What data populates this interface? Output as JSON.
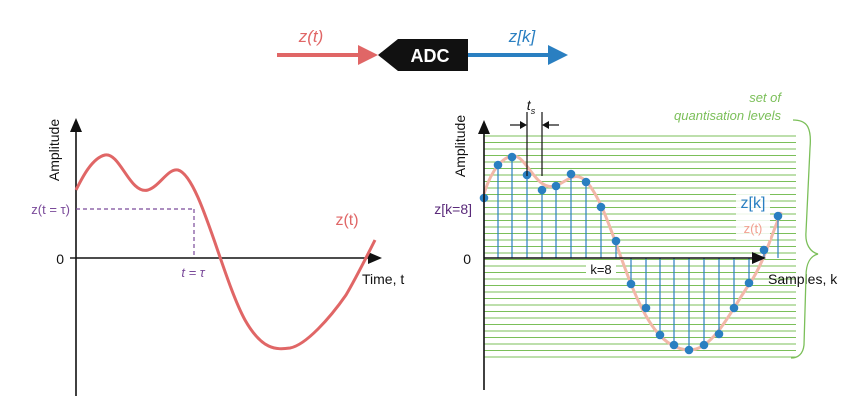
{
  "header": {
    "input_label": "z(t)",
    "block_label": "ADC",
    "output_label": "z[k]"
  },
  "left_panel": {
    "ylabel": "Amplitude",
    "xlabel": "Time, t",
    "zero_label": "0",
    "tau_level_label": "z(t = τ)",
    "tau_time_label": "t = τ",
    "curve_label": "z(t)"
  },
  "right_panel": {
    "ylabel": "Amplitude",
    "xlabel": "Samples, k",
    "zero_label": "0",
    "ts_label": "t",
    "ts_sub": "s",
    "sample_value_label": "z[k=8]",
    "sample_index_label": "k=8",
    "quant_label_1": "set of",
    "quant_label_2": "quantisation levels",
    "legend_discrete": "z[k]",
    "legend_continuous": "z(t)"
  },
  "colors": {
    "analog": "#e06666",
    "analog_light": "#f2b7a8",
    "digital": "#2a7fc1",
    "quant": "#7bbf59",
    "tau": "#7a4a9a",
    "axis": "#111111",
    "block": "#111111"
  }
}
